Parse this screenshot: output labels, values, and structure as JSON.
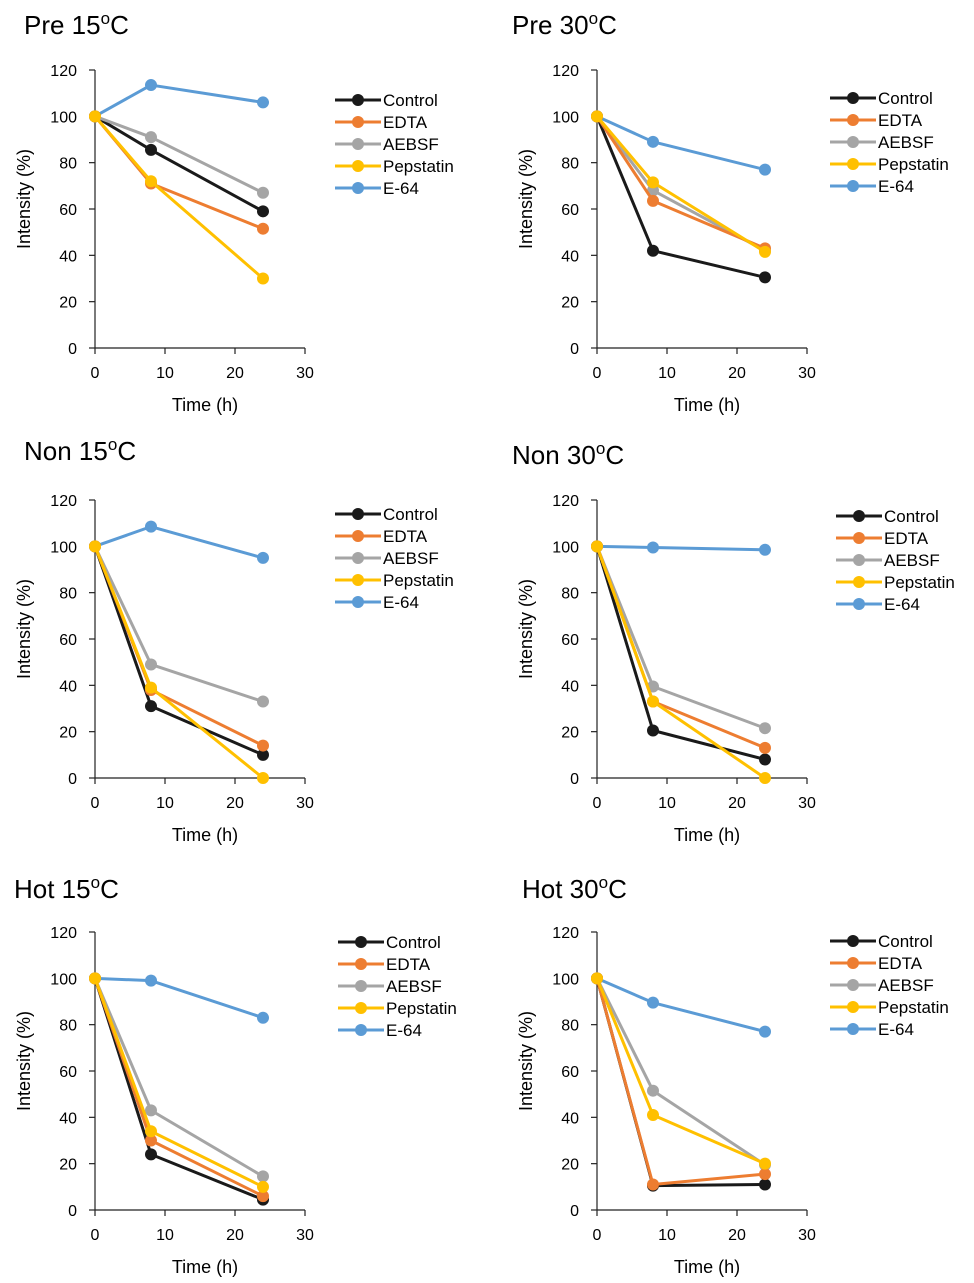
{
  "legend_entries": [
    "Control",
    "EDTA",
    "AEBSF",
    "Pepstatin",
    "E-64"
  ],
  "series_colors": {
    "Control": "#1a1a1a",
    "EDTA": "#ed7d31",
    "AEBSF": "#a5a5a5",
    "Pepstatin": "#ffc000",
    "E-64": "#5b9bd5"
  },
  "chart_data": [
    {
      "type": "line",
      "title": "Pre 15oC",
      "xlabel": "Time (h)",
      "ylabel": "Intensity (%)",
      "xlim": [
        0,
        30
      ],
      "ylim": [
        0,
        120
      ],
      "xticks": [
        0,
        10,
        20,
        30
      ],
      "yticks": [
        0,
        20,
        40,
        60,
        80,
        100,
        120
      ],
      "legend_position": "right",
      "grid": false,
      "x": [
        0,
        8,
        24
      ],
      "series": [
        {
          "name": "Control",
          "values": [
            100,
            85.5,
            59
          ]
        },
        {
          "name": "EDTA",
          "values": [
            100,
            71,
            51.5
          ]
        },
        {
          "name": "AEBSF",
          "values": [
            100,
            91,
            67
          ]
        },
        {
          "name": "Pepstatin",
          "values": [
            100,
            72,
            30
          ]
        },
        {
          "name": "E-64",
          "values": [
            100,
            113.5,
            106
          ]
        }
      ]
    },
    {
      "type": "line",
      "title": "Pre 30oC",
      "xlabel": "Time (h)",
      "ylabel": "Intensity (%)",
      "xlim": [
        0,
        30
      ],
      "ylim": [
        0,
        120
      ],
      "xticks": [
        0,
        10,
        20,
        30
      ],
      "yticks": [
        0,
        20,
        40,
        60,
        80,
        100,
        120
      ],
      "legend_position": "right",
      "grid": false,
      "x": [
        0,
        8,
        24
      ],
      "series": [
        {
          "name": "Control",
          "values": [
            100,
            42,
            30.5
          ]
        },
        {
          "name": "EDTA",
          "values": [
            100,
            63.5,
            43
          ]
        },
        {
          "name": "AEBSF",
          "values": [
            100,
            68,
            42
          ]
        },
        {
          "name": "Pepstatin",
          "values": [
            100,
            71.5,
            41.5
          ]
        },
        {
          "name": "E-64",
          "values": [
            100,
            89,
            77
          ]
        }
      ]
    },
    {
      "type": "line",
      "title": "Non 15oC",
      "xlabel": "Time (h)",
      "ylabel": "Intensity (%)",
      "xlim": [
        0,
        30
      ],
      "ylim": [
        0,
        120
      ],
      "xticks": [
        0,
        10,
        20,
        30
      ],
      "yticks": [
        0,
        20,
        40,
        60,
        80,
        100,
        120
      ],
      "legend_position": "right",
      "grid": false,
      "x": [
        0,
        8,
        24
      ],
      "series": [
        {
          "name": "Control",
          "values": [
            100,
            31,
            10
          ]
        },
        {
          "name": "EDTA",
          "values": [
            100,
            38,
            14
          ]
        },
        {
          "name": "AEBSF",
          "values": [
            100,
            49,
            33
          ]
        },
        {
          "name": "Pepstatin",
          "values": [
            100,
            39,
            0
          ]
        },
        {
          "name": "E-64",
          "values": [
            100,
            108.5,
            95
          ]
        }
      ]
    },
    {
      "type": "line",
      "title": "Non 30oC",
      "xlabel": "Time (h)",
      "ylabel": "Intensity (%)",
      "xlim": [
        0,
        30
      ],
      "ylim": [
        0,
        120
      ],
      "xticks": [
        0,
        10,
        20,
        30
      ],
      "yticks": [
        0,
        20,
        40,
        60,
        80,
        100,
        120
      ],
      "legend_position": "right",
      "grid": false,
      "x": [
        0,
        8,
        24
      ],
      "series": [
        {
          "name": "Control",
          "values": [
            100,
            20.5,
            8
          ]
        },
        {
          "name": "EDTA",
          "values": [
            100,
            33,
            13
          ]
        },
        {
          "name": "AEBSF",
          "values": [
            100,
            39.5,
            21.5
          ]
        },
        {
          "name": "Pepstatin",
          "values": [
            100,
            33,
            0
          ]
        },
        {
          "name": "E-64",
          "values": [
            100,
            99.5,
            98.5
          ]
        }
      ]
    },
    {
      "type": "line",
      "title": "Hot 15oC",
      "xlabel": "Time (h)",
      "ylabel": "Intensity (%)",
      "xlim": [
        0,
        30
      ],
      "ylim": [
        0,
        120
      ],
      "xticks": [
        0,
        10,
        20,
        30
      ],
      "yticks": [
        0,
        20,
        40,
        60,
        80,
        100,
        120
      ],
      "legend_position": "right",
      "grid": false,
      "x": [
        0,
        8,
        24
      ],
      "series": [
        {
          "name": "Control",
          "values": [
            100,
            24,
            4.5
          ]
        },
        {
          "name": "EDTA",
          "values": [
            100,
            30,
            6
          ]
        },
        {
          "name": "AEBSF",
          "values": [
            100,
            43,
            14.5
          ]
        },
        {
          "name": "Pepstatin",
          "values": [
            100,
            34,
            10
          ]
        },
        {
          "name": "E-64",
          "values": [
            100,
            99,
            83
          ]
        }
      ]
    },
    {
      "type": "line",
      "title": "Hot 30oC",
      "xlabel": "Time (h)",
      "ylabel": "Intensity (%)",
      "xlim": [
        0,
        30
      ],
      "ylim": [
        0,
        120
      ],
      "xticks": [
        0,
        10,
        20,
        30
      ],
      "yticks": [
        0,
        20,
        40,
        60,
        80,
        100,
        120
      ],
      "legend_position": "right",
      "grid": false,
      "x": [
        0,
        8,
        24
      ],
      "series": [
        {
          "name": "Control",
          "values": [
            100,
            10.5,
            11
          ]
        },
        {
          "name": "EDTA",
          "values": [
            100,
            11,
            15.5
          ]
        },
        {
          "name": "AEBSF",
          "values": [
            100,
            51.5,
            19.5
          ]
        },
        {
          "name": "Pepstatin",
          "values": [
            100,
            41,
            20
          ]
        },
        {
          "name": "E-64",
          "values": [
            100,
            89.5,
            77
          ]
        }
      ]
    }
  ]
}
